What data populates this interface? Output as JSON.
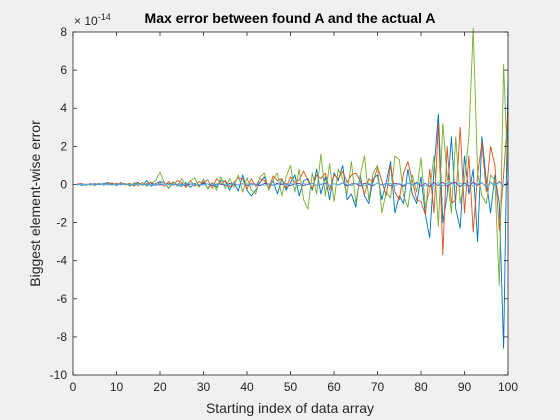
{
  "chart_data": {
    "type": "line",
    "title": "Max error between found A and the actual A",
    "xlabel": "Starting index of data array",
    "ylabel": "Biggest element-wise error",
    "exponent_label": "× 10",
    "exponent_power": "-14",
    "xlim": [
      0,
      100
    ],
    "ylim": [
      -10,
      8
    ],
    "xticks": [
      0,
      10,
      20,
      30,
      40,
      50,
      60,
      70,
      80,
      90,
      100
    ],
    "yticks": [
      -10,
      -8,
      -6,
      -4,
      -2,
      0,
      2,
      4,
      6,
      8
    ],
    "grid": false,
    "background": "#ffffff",
    "figure_background": "#f0f0f0",
    "series": [
      {
        "color": "#0072bd",
        "x": [
          1,
          2,
          3,
          4,
          5,
          6,
          7,
          8,
          9,
          10,
          11,
          12,
          13,
          14,
          15,
          16,
          17,
          18,
          19,
          20,
          21,
          22,
          23,
          24,
          25,
          26,
          27,
          28,
          29,
          30,
          31,
          32,
          33,
          34,
          35,
          36,
          37,
          38,
          39,
          40,
          41,
          42,
          43,
          44,
          45,
          46,
          47,
          48,
          49,
          50,
          51,
          52,
          53,
          54,
          55,
          56,
          57,
          58,
          59,
          60,
          61,
          62,
          63,
          64,
          65,
          66,
          67,
          68,
          69,
          70,
          71,
          72,
          73,
          74,
          75,
          76,
          77,
          78,
          79,
          80,
          81,
          82,
          83,
          84,
          85,
          86,
          87,
          88,
          89,
          90,
          91,
          92,
          93,
          94,
          95,
          96,
          97,
          98,
          99,
          100
        ],
        "y": [
          0.05,
          -0.05,
          0.02,
          -0.03,
          0.05,
          -0.02,
          0.04,
          0.1,
          0.02,
          -0.05,
          0.03,
          0.05,
          -0.08,
          0.05,
          0.1,
          -0.05,
          0.2,
          -0.1,
          0.05,
          0.15,
          0.1,
          -0.2,
          0.1,
          -0.05,
          -0.1,
          0.1,
          -0.15,
          0.05,
          -0.1,
          0.15,
          -0.2,
          0.1,
          -0.15,
          0.2,
          0.15,
          -0.3,
          0.1,
          -0.35,
          0.5,
          -0.3,
          -0.6,
          -0.3,
          0.1,
          0.4,
          -0.2,
          0.2,
          -0.5,
          0.3,
          -0.3,
          0.1,
          0.5,
          -0.6,
          0.2,
          0.3,
          -0.3,
          0.8,
          -0.5,
          0.4,
          -0.8,
          0.6,
          0.2,
          1.0,
          -0.8,
          -0.5,
          -1.2,
          0.5,
          -0.6,
          -1.0,
          0.3,
          0.5,
          -0.8,
          0.1,
          1.2,
          -1.5,
          -0.6,
          -1.0,
          0.8,
          -0.5,
          -1.0,
          0.4,
          -1.6,
          -2.8,
          0.8,
          3.7,
          -2.0,
          -0.6,
          2.5,
          -1.3,
          -2.3,
          1.5,
          -0.5,
          0.8,
          -3.0,
          2.5,
          0.2,
          -1.5,
          0.5,
          -1.0,
          -8.6,
          5.5
        ]
      },
      {
        "color": "#d95319",
        "x": [
          1,
          2,
          3,
          4,
          5,
          6,
          7,
          8,
          9,
          10,
          11,
          12,
          13,
          14,
          15,
          16,
          17,
          18,
          19,
          20,
          21,
          22,
          23,
          24,
          25,
          26,
          27,
          28,
          29,
          30,
          31,
          32,
          33,
          34,
          35,
          36,
          37,
          38,
          39,
          40,
          41,
          42,
          43,
          44,
          45,
          46,
          47,
          48,
          49,
          50,
          51,
          52,
          53,
          54,
          55,
          56,
          57,
          58,
          59,
          60,
          61,
          62,
          63,
          64,
          65,
          66,
          67,
          68,
          69,
          70,
          71,
          72,
          73,
          74,
          75,
          76,
          77,
          78,
          79,
          80,
          81,
          82,
          83,
          84,
          85,
          86,
          87,
          88,
          89,
          90,
          91,
          92,
          93,
          94,
          95,
          96,
          97,
          98,
          99,
          100
        ],
        "y": [
          0.02,
          0.05,
          -0.03,
          0.04,
          -0.02,
          0.06,
          -0.04,
          0.05,
          0.08,
          -0.05,
          0.1,
          -0.03,
          0.06,
          -0.08,
          0.1,
          -0.04,
          0.05,
          0.12,
          -0.06,
          0.1,
          -0.1,
          0.15,
          -0.05,
          0.2,
          0.1,
          -0.15,
          0.2,
          -0.1,
          0.15,
          0.05,
          0.25,
          -0.2,
          0.3,
          0.05,
          0.2,
          -0.15,
          0.1,
          0.35,
          0.3,
          -0.25,
          0.3,
          -0.1,
          0.3,
          0.2,
          -0.2,
          0.45,
          0.2,
          0.3,
          -0.2,
          0.4,
          0.1,
          0.25,
          0.7,
          0.2,
          -0.2,
          0.5,
          0.3,
          0.6,
          -0.3,
          0.5,
          0.3,
          0.7,
          0.1,
          0.5,
          0.6,
          0.2,
          -0.5,
          0.3,
          0.1,
          0.9,
          0.2,
          -0.6,
          1.0,
          -0.4,
          -0.8,
          0.6,
          1.2,
          0.2,
          -0.8,
          -0.9,
          -1.6,
          0.8,
          -1.5,
          3.2,
          -3.7,
          2.0,
          -1.0,
          -0.8,
          3.0,
          -1.5,
          1.5,
          -2.5,
          0.5,
          2.2,
          -0.4,
          2.0,
          1.0,
          -2.4,
          0.5,
          3.8
        ]
      },
      {
        "color": "#77ac30",
        "x": [
          1,
          2,
          3,
          4,
          5,
          6,
          7,
          8,
          9,
          10,
          11,
          12,
          13,
          14,
          15,
          16,
          17,
          18,
          19,
          20,
          21,
          22,
          23,
          24,
          25,
          26,
          27,
          28,
          29,
          30,
          31,
          32,
          33,
          34,
          35,
          36,
          37,
          38,
          39,
          40,
          41,
          42,
          43,
          44,
          45,
          46,
          47,
          48,
          49,
          50,
          51,
          52,
          53,
          54,
          55,
          56,
          57,
          58,
          59,
          60,
          61,
          62,
          63,
          64,
          65,
          66,
          67,
          68,
          69,
          70,
          71,
          72,
          73,
          74,
          75,
          76,
          77,
          78,
          79,
          80,
          81,
          82,
          83,
          84,
          85,
          86,
          87,
          88,
          89,
          90,
          91,
          92,
          93,
          94,
          95,
          96,
          97,
          98,
          99,
          100
        ],
        "y": [
          -0.05,
          0.03,
          -0.05,
          0.02,
          -0.06,
          0.05,
          -0.02,
          0.04,
          -0.05,
          0.06,
          -0.03,
          0.05,
          -0.1,
          0.08,
          -0.08,
          0.1,
          -0.1,
          0.05,
          0.2,
          0.65,
          0.1,
          -0.2,
          0.15,
          -0.1,
          0.3,
          -0.1,
          0.2,
          0.35,
          -0.15,
          0.3,
          -0.25,
          0.1,
          -0.3,
          0.4,
          -0.2,
          0.3,
          -0.15,
          0.5,
          -0.4,
          0.35,
          -0.3,
          -0.5,
          0.4,
          0.6,
          -0.3,
          0.25,
          0.6,
          -0.6,
          0.4,
          1.0,
          -0.4,
          0.8,
          -0.8,
          -1.3,
          0.6,
          -0.5,
          1.6,
          -0.6,
          1.1,
          -0.9,
          0.8,
          0.3,
          -0.5,
          1.2,
          -1.0,
          0.4,
          1.5,
          -0.8,
          0.6,
          1.0,
          -1.5,
          -0.4,
          -0.7,
          1.5,
          1.3,
          -0.6,
          -1.2,
          0.5,
          -0.4,
          1.4,
          -1.2,
          -0.3,
          1.5,
          -2.2,
          3.2,
          0.5,
          -1.5,
          2.5,
          -1.0,
          0.3,
          2.5,
          8.2,
          0.6,
          -0.6,
          -1.0,
          0.5,
          0.2,
          -5.3,
          6.3,
          0.4
        ]
      },
      {
        "color": "#7e2f8e",
        "x": [
          1,
          2,
          3,
          4,
          5,
          6,
          7,
          8,
          9,
          10,
          11,
          12,
          13,
          14,
          15,
          16,
          17,
          18,
          19,
          20,
          21,
          22,
          23,
          24,
          25,
          26,
          27,
          28,
          29,
          30,
          31,
          32,
          33,
          34,
          35,
          36,
          37,
          38,
          39,
          40,
          41,
          42,
          43,
          44,
          45,
          46,
          47,
          48,
          49,
          50,
          51,
          52,
          53,
          54,
          55,
          56,
          57,
          58,
          59,
          60,
          61,
          62,
          63,
          64,
          65,
          66,
          67,
          68,
          69,
          70,
          71,
          72,
          73,
          74,
          75,
          76,
          77,
          78,
          79,
          80,
          81,
          82,
          83,
          84,
          85,
          86,
          87,
          88,
          89,
          90,
          91,
          92,
          93,
          94,
          95,
          96,
          97,
          98,
          99,
          100
        ],
        "y": [
          0.0,
          0.01,
          -0.01,
          0.02,
          -0.01,
          0.02,
          0.0,
          -0.02,
          0.01,
          0.03,
          -0.02,
          0.02,
          0.0,
          -0.03,
          0.02,
          0.01,
          -0.02,
          0.03,
          0.0,
          -0.03,
          0.02,
          0.04,
          -0.02,
          0.01,
          0.03,
          -0.04,
          0.02,
          0.0,
          -0.03,
          0.04,
          0.02,
          -0.05,
          0.03,
          0.0,
          -0.04,
          0.05,
          0.01,
          -0.03,
          0.05,
          -0.05,
          0.04,
          0.0,
          -0.06,
          0.05,
          0.02,
          -0.05,
          0.06,
          -0.02,
          0.04,
          -0.06,
          0.03,
          0.05,
          -0.06,
          0.02,
          0.06,
          -0.05,
          0.0,
          0.07,
          -0.06,
          0.04,
          -0.02,
          0.08,
          -0.07,
          0.03,
          0.05,
          -0.08,
          0.06,
          0.0,
          -0.07,
          0.08,
          -0.04,
          0.06,
          -0.08,
          0.05,
          0.02,
          -0.1,
          0.08,
          -0.05,
          0.1,
          -0.08,
          0.06,
          -0.12,
          0.1,
          -0.06,
          0.12,
          -0.1,
          0.05,
          0.1,
          -0.12,
          0.08,
          -0.1,
          0.12,
          -0.05,
          0.1,
          -0.15,
          0.12,
          -0.08,
          0.15,
          -0.1,
          0.1
        ]
      },
      {
        "color": "#4dbeee",
        "x": [
          1,
          2,
          3,
          4,
          5,
          6,
          7,
          8,
          9,
          10,
          11,
          12,
          13,
          14,
          15,
          16,
          17,
          18,
          19,
          20,
          21,
          22,
          23,
          24,
          25,
          26,
          27,
          28,
          29,
          30,
          31,
          32,
          33,
          34,
          35,
          36,
          37,
          38,
          39,
          40,
          41,
          42,
          43,
          44,
          45,
          46,
          47,
          48,
          49,
          50,
          51,
          52,
          53,
          54,
          55,
          56,
          57,
          58,
          59,
          60,
          61,
          62,
          63,
          64,
          65,
          66,
          67,
          68,
          69,
          70,
          71,
          72,
          73,
          74,
          75,
          76,
          77,
          78,
          79,
          80,
          81,
          82,
          83,
          84,
          85,
          86,
          87,
          88,
          89,
          90,
          91,
          92,
          93,
          94,
          95,
          96,
          97,
          98,
          99,
          100
        ],
        "y": [
          -0.01,
          0.01,
          0.0,
          -0.02,
          0.01,
          0.02,
          -0.01,
          0.0,
          0.02,
          -0.02,
          0.01,
          0.02,
          -0.02,
          0.0,
          0.03,
          -0.02,
          0.02,
          0.0,
          -0.03,
          0.02,
          0.03,
          -0.02,
          0.0,
          0.03,
          -0.03,
          0.02,
          0.04,
          -0.02,
          0.0,
          -0.04,
          0.03,
          0.02,
          -0.04,
          0.04,
          0.0,
          -0.03,
          0.05,
          -0.04,
          0.02,
          0.04,
          -0.05,
          0.03,
          0.02,
          -0.05,
          0.05,
          -0.03,
          0.0,
          0.06,
          -0.05,
          0.04,
          0.02,
          -0.06,
          0.05,
          -0.02,
          0.06,
          -0.05,
          0.03,
          0.04,
          -0.06,
          0.05,
          -0.04,
          0.06,
          0.0,
          -0.07,
          0.05,
          0.04,
          -0.07,
          0.06,
          -0.03,
          0.07,
          -0.06,
          0.04,
          0.05,
          -0.08,
          0.06,
          -0.04,
          0.08,
          -0.06,
          0.05,
          0.07,
          -0.1,
          0.08,
          -0.05,
          0.1,
          -0.08,
          0.06,
          0.1,
          -0.1,
          0.08,
          -0.06,
          0.12,
          -0.1,
          0.06,
          0.1,
          -0.12,
          0.1,
          -0.08,
          0.12,
          -0.1,
          0.2
        ]
      }
    ]
  }
}
